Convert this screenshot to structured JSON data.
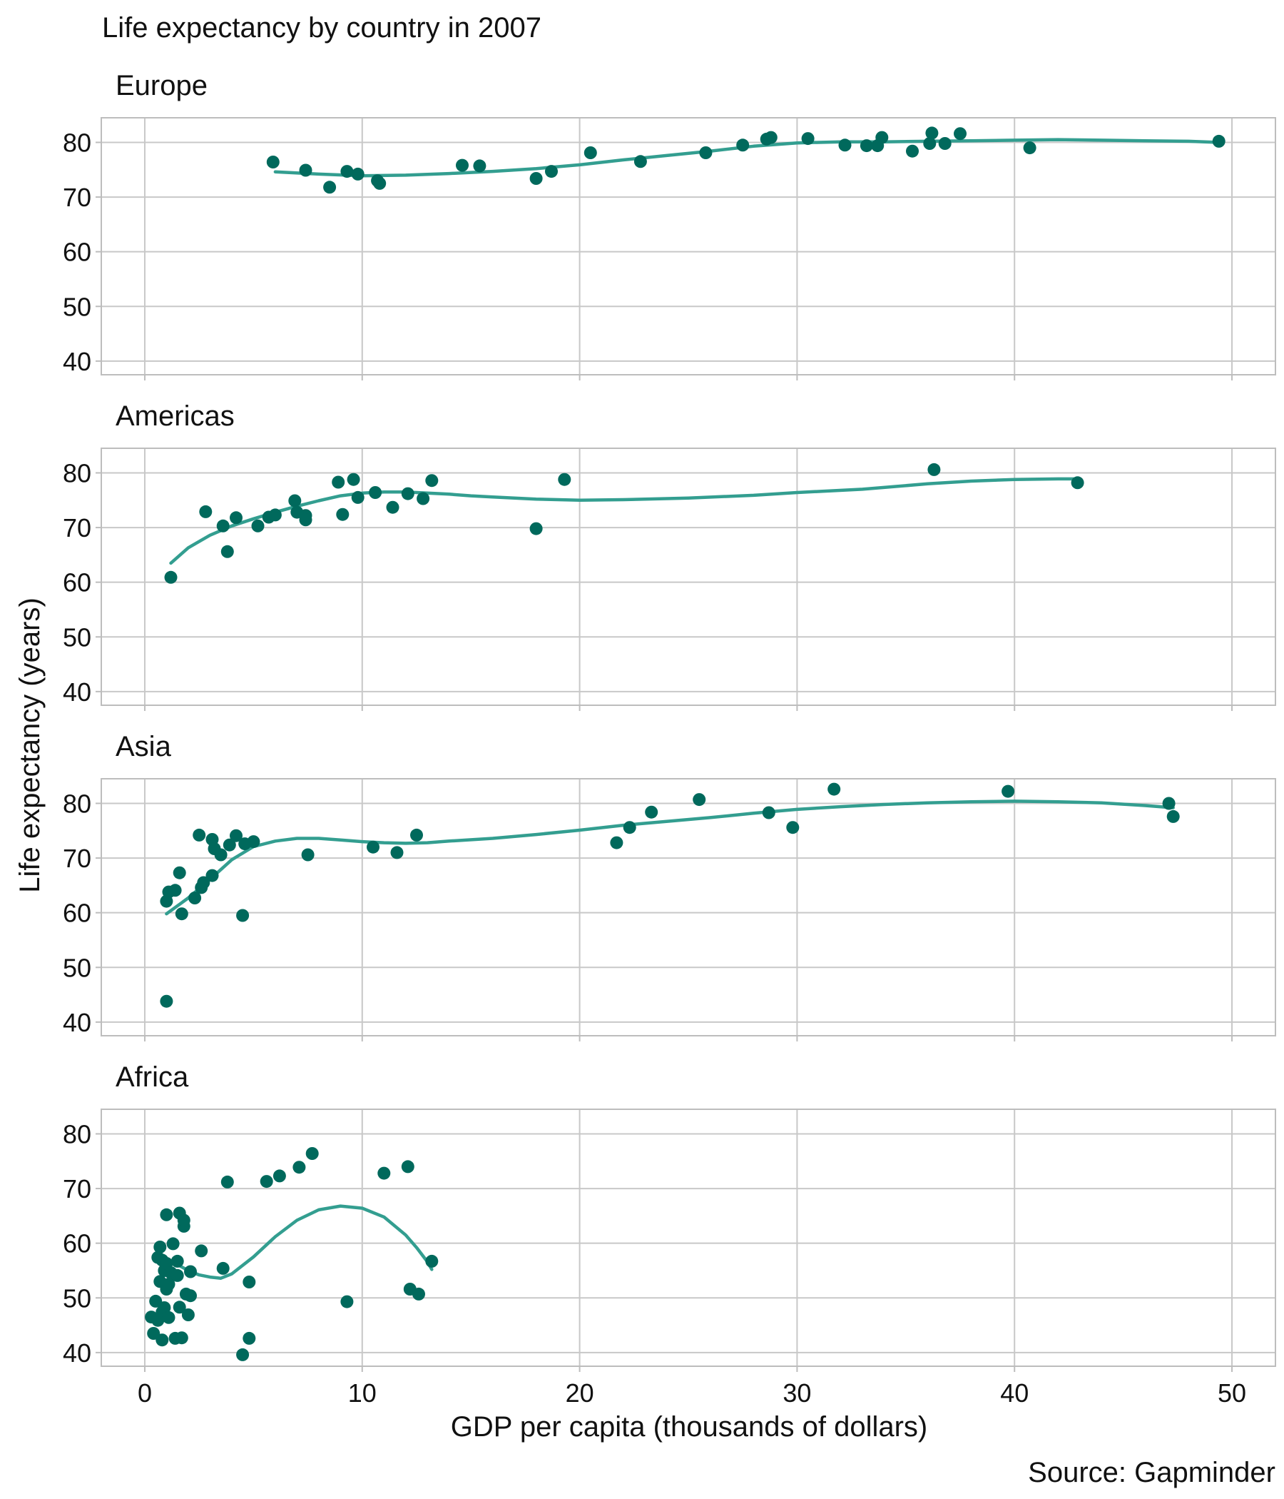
{
  "chart_data": {
    "type": "scatter",
    "title": "Life expectancy by country in 2007",
    "xlabel": "GDP per capita (thousands of dollars)",
    "ylabel": "Life expectancy (years)",
    "caption": "Source: Gapminder",
    "xlim": [
      -2,
      52
    ],
    "ylim": [
      37.5,
      84.5
    ],
    "x_ticks": [
      0,
      10,
      20,
      30,
      40,
      50
    ],
    "y_ticks": [
      40,
      50,
      60,
      70,
      80
    ],
    "grid": true,
    "colors": {
      "point": "#00695c",
      "smooth": "#339e90"
    },
    "facets": [
      {
        "name": "Europe",
        "points": [
          [
            5.9,
            76.4
          ],
          [
            7.4,
            74.9
          ],
          [
            8.5,
            71.8
          ],
          [
            9.3,
            74.7
          ],
          [
            9.8,
            74.2
          ],
          [
            10.7,
            73.0
          ],
          [
            10.8,
            72.5
          ],
          [
            14.6,
            75.8
          ],
          [
            15.4,
            75.7
          ],
          [
            18.0,
            73.4
          ],
          [
            18.7,
            74.7
          ],
          [
            20.5,
            78.1
          ],
          [
            22.8,
            76.5
          ],
          [
            25.8,
            78.1
          ],
          [
            27.5,
            79.5
          ],
          [
            28.6,
            80.6
          ],
          [
            28.8,
            80.9
          ],
          [
            30.5,
            80.7
          ],
          [
            32.2,
            79.5
          ],
          [
            33.2,
            79.4
          ],
          [
            33.7,
            79.4
          ],
          [
            33.9,
            80.9
          ],
          [
            35.3,
            78.4
          ],
          [
            36.1,
            79.8
          ],
          [
            36.2,
            81.7
          ],
          [
            36.8,
            79.8
          ],
          [
            37.5,
            81.6
          ],
          [
            40.7,
            79.0
          ],
          [
            49.4,
            80.2
          ]
        ],
        "smooth": [
          [
            6,
            74.6
          ],
          [
            8,
            74.2
          ],
          [
            10,
            73.9
          ],
          [
            12,
            74.0
          ],
          [
            14,
            74.3
          ],
          [
            16,
            74.7
          ],
          [
            18,
            75.2
          ],
          [
            20,
            75.9
          ],
          [
            22,
            76.8
          ],
          [
            24,
            77.6
          ],
          [
            26,
            78.4
          ],
          [
            28,
            79.3
          ],
          [
            30,
            79.9
          ],
          [
            32,
            80.1
          ],
          [
            34,
            80.1
          ],
          [
            36,
            80.2
          ],
          [
            38,
            80.3
          ],
          [
            40,
            80.4
          ],
          [
            42,
            80.5
          ],
          [
            44,
            80.4
          ],
          [
            46,
            80.3
          ],
          [
            48,
            80.2
          ],
          [
            49.4,
            80.0
          ]
        ]
      },
      {
        "name": "Americas",
        "points": [
          [
            1.2,
            60.9
          ],
          [
            2.8,
            72.9
          ],
          [
            3.6,
            70.3
          ],
          [
            3.8,
            65.6
          ],
          [
            4.2,
            71.8
          ],
          [
            5.2,
            70.3
          ],
          [
            5.7,
            71.9
          ],
          [
            6.0,
            72.3
          ],
          [
            6.9,
            74.9
          ],
          [
            7.0,
            72.8
          ],
          [
            7.4,
            72.2
          ],
          [
            7.4,
            71.4
          ],
          [
            8.9,
            78.3
          ],
          [
            9.1,
            72.4
          ],
          [
            9.6,
            78.8
          ],
          [
            9.8,
            75.5
          ],
          [
            10.6,
            76.4
          ],
          [
            11.4,
            73.7
          ],
          [
            12.1,
            76.2
          ],
          [
            12.8,
            75.3
          ],
          [
            13.2,
            78.6
          ],
          [
            18.0,
            69.8
          ],
          [
            19.3,
            78.8
          ],
          [
            36.3,
            80.6
          ],
          [
            42.9,
            78.2
          ]
        ],
        "smooth": [
          [
            1.2,
            63.5
          ],
          [
            2,
            66.3
          ],
          [
            3,
            68.6
          ],
          [
            4,
            70.3
          ],
          [
            5,
            71.6
          ],
          [
            6,
            72.8
          ],
          [
            7,
            73.9
          ],
          [
            8,
            74.9
          ],
          [
            9,
            75.8
          ],
          [
            10,
            76.3
          ],
          [
            11,
            76.5
          ],
          [
            12,
            76.5
          ],
          [
            13,
            76.3
          ],
          [
            14,
            76.1
          ],
          [
            15,
            75.8
          ],
          [
            16,
            75.6
          ],
          [
            17,
            75.4
          ],
          [
            18,
            75.2
          ],
          [
            20,
            75.0
          ],
          [
            22,
            75.1
          ],
          [
            25,
            75.4
          ],
          [
            28,
            75.9
          ],
          [
            30,
            76.4
          ],
          [
            33,
            77.0
          ],
          [
            36,
            78.0
          ],
          [
            38,
            78.5
          ],
          [
            40,
            78.8
          ],
          [
            42,
            78.9
          ],
          [
            42.9,
            78.9
          ]
        ]
      },
      {
        "name": "Asia",
        "points": [
          [
            1.0,
            43.8
          ],
          [
            1.0,
            62.1
          ],
          [
            1.1,
            63.8
          ],
          [
            1.4,
            64.1
          ],
          [
            1.6,
            67.3
          ],
          [
            1.7,
            59.8
          ],
          [
            2.3,
            62.7
          ],
          [
            2.5,
            74.2
          ],
          [
            2.6,
            64.6
          ],
          [
            2.7,
            65.5
          ],
          [
            3.1,
            73.4
          ],
          [
            3.1,
            66.8
          ],
          [
            3.2,
            71.7
          ],
          [
            3.5,
            70.6
          ],
          [
            3.9,
            72.4
          ],
          [
            4.2,
            74.1
          ],
          [
            4.5,
            59.5
          ],
          [
            4.6,
            72.6
          ],
          [
            5.0,
            73.0
          ],
          [
            7.5,
            70.6
          ],
          [
            10.5,
            72.0
          ],
          [
            11.6,
            71.0
          ],
          [
            12.5,
            74.2
          ],
          [
            21.7,
            72.8
          ],
          [
            22.3,
            75.6
          ],
          [
            23.3,
            78.4
          ],
          [
            25.5,
            80.7
          ],
          [
            28.7,
            78.3
          ],
          [
            29.8,
            75.6
          ],
          [
            31.7,
            82.6
          ],
          [
            39.7,
            82.2
          ],
          [
            47.1,
            80.0
          ],
          [
            47.3,
            77.6
          ]
        ],
        "smooth": [
          [
            1,
            59.8
          ],
          [
            2,
            62.7
          ],
          [
            3,
            66.1
          ],
          [
            4,
            69.7
          ],
          [
            5,
            72.1
          ],
          [
            6,
            73.1
          ],
          [
            7,
            73.6
          ],
          [
            8,
            73.6
          ],
          [
            9,
            73.3
          ],
          [
            10,
            73.0
          ],
          [
            11,
            72.8
          ],
          [
            12,
            72.7
          ],
          [
            13,
            72.8
          ],
          [
            14,
            73.1
          ],
          [
            16,
            73.6
          ],
          [
            18,
            74.3
          ],
          [
            20,
            75.1
          ],
          [
            22,
            76.0
          ],
          [
            24,
            76.7
          ],
          [
            26,
            77.4
          ],
          [
            28,
            78.2
          ],
          [
            30,
            78.9
          ],
          [
            32,
            79.4
          ],
          [
            34,
            79.8
          ],
          [
            36,
            80.1
          ],
          [
            38,
            80.3
          ],
          [
            40,
            80.4
          ],
          [
            42,
            80.3
          ],
          [
            44,
            80.1
          ],
          [
            46,
            79.6
          ],
          [
            47.3,
            79.2
          ]
        ]
      },
      {
        "name": "Africa",
        "points": [
          [
            0.3,
            46.5
          ],
          [
            0.4,
            43.5
          ],
          [
            0.5,
            49.4
          ],
          [
            0.6,
            57.4
          ],
          [
            0.6,
            45.9
          ],
          [
            0.7,
            53.0
          ],
          [
            0.7,
            59.3
          ],
          [
            0.8,
            47.4
          ],
          [
            0.8,
            42.3
          ],
          [
            0.8,
            56.9
          ],
          [
            0.9,
            55.0
          ],
          [
            0.9,
            48.2
          ],
          [
            1.0,
            65.2
          ],
          [
            1.0,
            56.3
          ],
          [
            1.0,
            51.6
          ],
          [
            1.1,
            46.4
          ],
          [
            1.1,
            52.5
          ],
          [
            1.2,
            54.6
          ],
          [
            1.3,
            59.9
          ],
          [
            1.4,
            42.6
          ],
          [
            1.5,
            56.7
          ],
          [
            1.5,
            54.1
          ],
          [
            1.6,
            48.3
          ],
          [
            1.6,
            65.5
          ],
          [
            1.7,
            42.7
          ],
          [
            1.8,
            63.1
          ],
          [
            1.8,
            64.2
          ],
          [
            1.9,
            50.7
          ],
          [
            2.0,
            46.9
          ],
          [
            2.1,
            54.8
          ],
          [
            2.1,
            50.4
          ],
          [
            2.6,
            58.6
          ],
          [
            3.6,
            55.4
          ],
          [
            3.8,
            71.2
          ],
          [
            4.5,
            39.6
          ],
          [
            4.8,
            42.6
          ],
          [
            4.8,
            52.9
          ],
          [
            5.6,
            71.3
          ],
          [
            6.2,
            72.3
          ],
          [
            7.1,
            73.9
          ],
          [
            7.7,
            76.4
          ],
          [
            9.3,
            49.3
          ],
          [
            11.0,
            72.8
          ],
          [
            12.1,
            74.0
          ],
          [
            12.2,
            51.6
          ],
          [
            12.6,
            50.7
          ],
          [
            13.2,
            56.7
          ]
        ],
        "smooth": [
          [
            1.0,
            57.0
          ],
          [
            1.5,
            56.1
          ],
          [
            2.0,
            55.0
          ],
          [
            2.5,
            54.2
          ],
          [
            3.0,
            53.8
          ],
          [
            3.5,
            53.6
          ],
          [
            4.0,
            54.4
          ],
          [
            5.0,
            57.5
          ],
          [
            6.0,
            61.2
          ],
          [
            7.0,
            64.2
          ],
          [
            8.0,
            66.1
          ],
          [
            9.0,
            66.8
          ],
          [
            10.0,
            66.4
          ],
          [
            11.0,
            64.8
          ],
          [
            12.0,
            61.5
          ],
          [
            12.5,
            59.2
          ],
          [
            13.0,
            56.6
          ],
          [
            13.2,
            55.2
          ]
        ]
      }
    ]
  }
}
